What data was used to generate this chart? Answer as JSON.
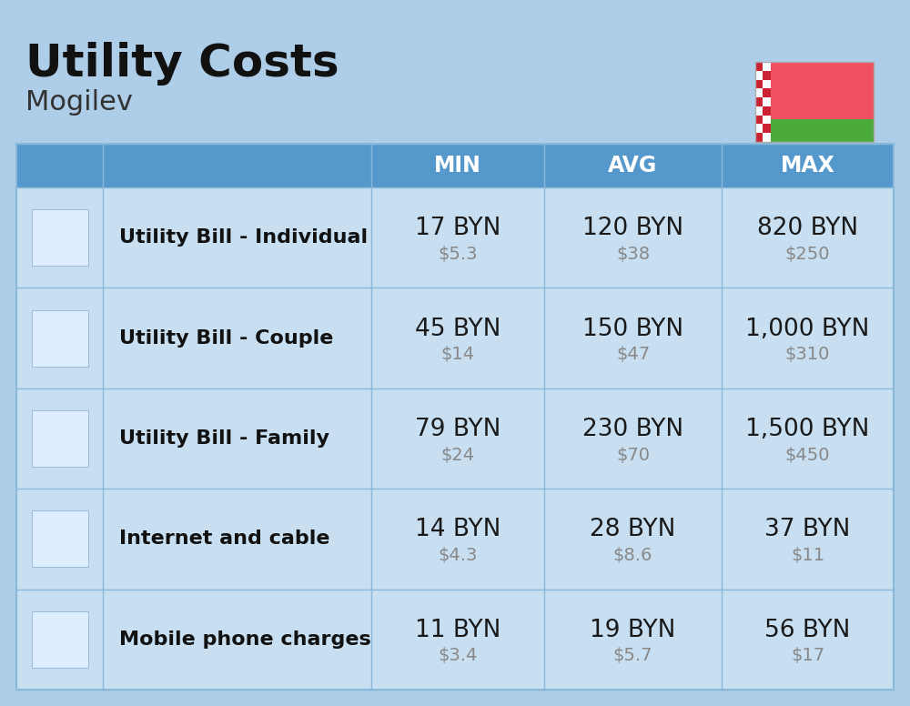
{
  "title": "Utility Costs",
  "subtitle": "Mogilev",
  "background_color": "#aecde8",
  "header_bg_color": "#5599cc",
  "header_text_color": "#ffffff",
  "row_bg_color": "#c8dff2",
  "col_divider_color": "#8ab8d8",
  "rows": [
    {
      "label": "Utility Bill - Individual",
      "min_byn": "17 BYN",
      "min_usd": "$5.3",
      "avg_byn": "120 BYN",
      "avg_usd": "$38",
      "max_byn": "820 BYN",
      "max_usd": "$250"
    },
    {
      "label": "Utility Bill - Couple",
      "min_byn": "45 BYN",
      "min_usd": "$14",
      "avg_byn": "150 BYN",
      "avg_usd": "$47",
      "max_byn": "1,000 BYN",
      "max_usd": "$310"
    },
    {
      "label": "Utility Bill - Family",
      "min_byn": "79 BYN",
      "min_usd": "$24",
      "avg_byn": "230 BYN",
      "avg_usd": "$70",
      "max_byn": "1,500 BYN",
      "max_usd": "$450"
    },
    {
      "label": "Internet and cable",
      "min_byn": "14 BYN",
      "min_usd": "$4.3",
      "avg_byn": "28 BYN",
      "avg_usd": "$8.6",
      "max_byn": "37 BYN",
      "max_usd": "$11"
    },
    {
      "label": "Mobile phone charges",
      "min_byn": "11 BYN",
      "min_usd": "$3.4",
      "avg_byn": "19 BYN",
      "avg_usd": "$5.7",
      "max_byn": "56 BYN",
      "max_usd": "$17"
    }
  ],
  "title_fontsize": 36,
  "subtitle_fontsize": 22,
  "header_fontsize": 17,
  "label_fontsize": 16,
  "value_fontsize": 19,
  "usd_fontsize": 14,
  "flag_red": "#f05060",
  "flag_green": "#4aaa3a",
  "flag_white": "#ffffff",
  "flag_stripe_red": "#cc2233"
}
